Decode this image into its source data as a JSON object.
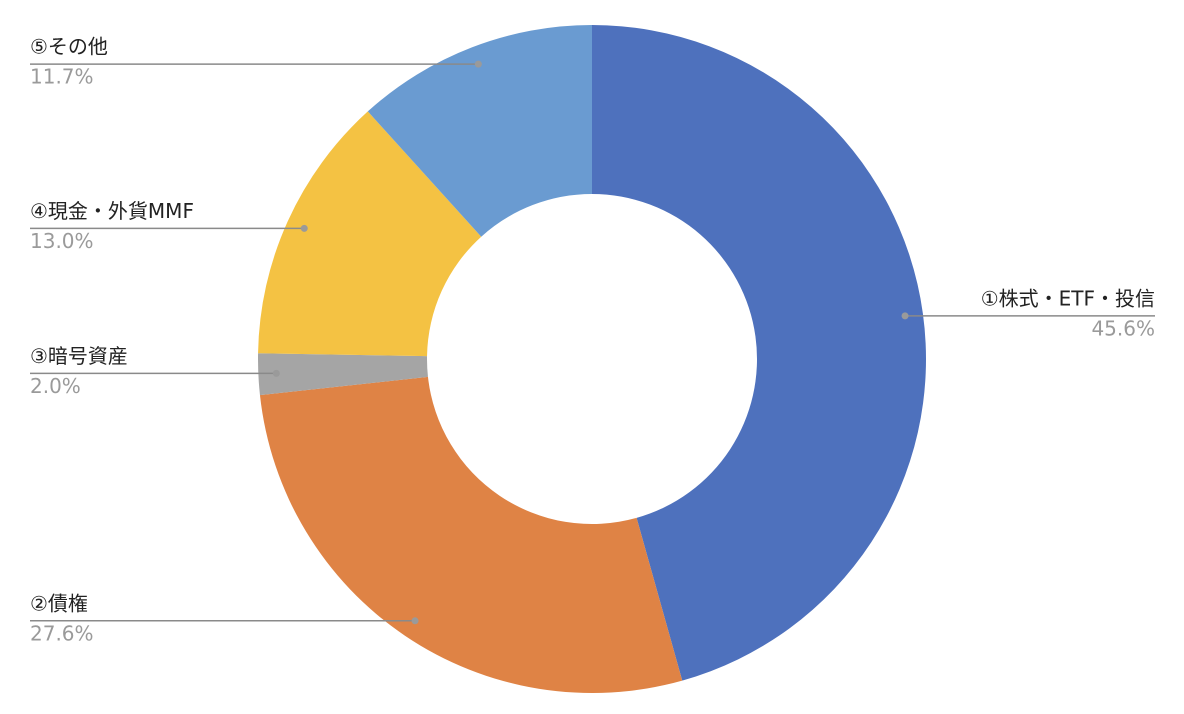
{
  "chart_data": {
    "type": "donut",
    "categories": [
      "①株式・ETF・投信",
      "②債権",
      "③暗号資産",
      "④現金・外貨MMF",
      "⑤その他"
    ],
    "values": [
      45.6,
      27.6,
      2.0,
      13.0,
      11.7
    ],
    "value_labels": [
      "45.6%",
      "27.6%",
      "2.0%",
      "13.0%",
      "11.7%"
    ],
    "colors": [
      "#4e71bd",
      "#df8345",
      "#a5a5a5",
      "#f4c243",
      "#6a9bd1"
    ]
  }
}
